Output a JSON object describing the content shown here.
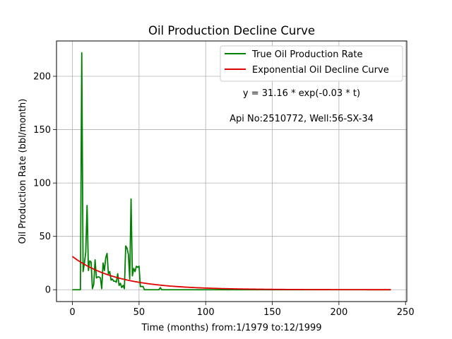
{
  "chart_data": {
    "type": "line",
    "title": "Oil Production Decline Curve",
    "xlabel": "Time (months) from:1/1979 to:12/1999",
    "ylabel": "Oil Production Rate (bbl/month)",
    "xlim": [
      -11.95,
      250.95
    ],
    "ylim": [
      -11.1,
      233.1
    ],
    "xticks": [
      0,
      50,
      100,
      150,
      200,
      250
    ],
    "yticks": [
      0,
      50,
      100,
      150,
      200
    ],
    "grid": true,
    "legend_position": "top-right",
    "annotations": [
      "y = 31.16 * exp(-0.03 * t)",
      "Api No:2510772, Well:56-SX-34"
    ],
    "series": [
      {
        "name": "True Oil Production Rate",
        "color": "#008000",
        "x": [
          0,
          1,
          2,
          3,
          4,
          5,
          6,
          7,
          8,
          9,
          10,
          11,
          12,
          13,
          14,
          15,
          16,
          17,
          18,
          19,
          20,
          21,
          22,
          23,
          24,
          25,
          26,
          27,
          28,
          29,
          30,
          31,
          32,
          33,
          34,
          35,
          36,
          37,
          38,
          39,
          40,
          41,
          42,
          43,
          44,
          45,
          46,
          47,
          48,
          49,
          50,
          51,
          52,
          53,
          54,
          55,
          56,
          57,
          58,
          59,
          60,
          61,
          62,
          63,
          64,
          65,
          66,
          67,
          68,
          69,
          70,
          239
        ],
        "y": [
          0,
          0,
          0,
          0,
          0,
          0,
          0,
          222,
          17,
          25,
          35,
          79,
          18,
          27,
          26,
          1,
          5,
          28,
          11,
          12,
          12,
          11,
          1,
          25,
          18,
          30,
          34,
          15,
          17,
          9,
          10,
          8,
          8,
          7,
          15,
          4,
          6,
          2,
          4,
          1,
          41,
          39,
          33,
          10,
          85,
          13,
          20,
          17,
          22,
          21,
          22,
          3,
          3,
          3,
          0,
          0,
          0,
          0,
          0,
          0,
          0,
          0,
          0,
          0,
          0,
          0,
          2,
          0,
          0,
          0,
          0,
          0
        ]
      },
      {
        "name": "Exponential Oil Decline Curve",
        "color": "#e00000",
        "equation": {
          "a": 31.16,
          "b": -0.03
        },
        "x_range": [
          0,
          239
        ]
      }
    ]
  }
}
